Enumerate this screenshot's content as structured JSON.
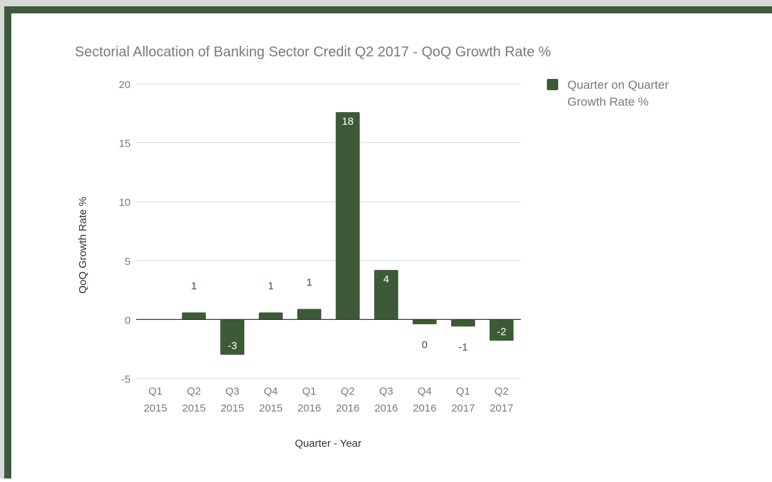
{
  "chart_data": {
    "type": "bar",
    "title": "Sectorial Allocation of Banking Sector Credit Q2 2017 - QoQ Growth Rate %",
    "xlabel": "Quarter  - Year",
    "ylabel": "QoQ Growth Rate %",
    "ylim": [
      -5,
      20
    ],
    "yticks": [
      20,
      15,
      10,
      5,
      0,
      -5
    ],
    "grid": true,
    "legend_position": "right",
    "categories": [
      [
        "Q1",
        "2015"
      ],
      [
        "Q2",
        "2015"
      ],
      [
        "Q3",
        "2015"
      ],
      [
        "Q4",
        "2015"
      ],
      [
        "Q1",
        "2016"
      ],
      [
        "Q2",
        "2016"
      ],
      [
        "Q3",
        "2016"
      ],
      [
        "Q4",
        "2016"
      ],
      [
        "Q1",
        "2017"
      ],
      [
        "Q2",
        "2017"
      ]
    ],
    "series": [
      {
        "name": "Quarter on Quarter Growth Rate %",
        "color": "#3c5a35",
        "values": [
          0,
          0.6,
          -3.0,
          0.6,
          0.9,
          17.6,
          4.2,
          -0.4,
          -0.6,
          -1.8
        ],
        "labels": [
          "",
          "1",
          "-3",
          "1",
          "1",
          "18",
          "4",
          "0",
          "-1",
          "-2"
        ]
      }
    ]
  }
}
